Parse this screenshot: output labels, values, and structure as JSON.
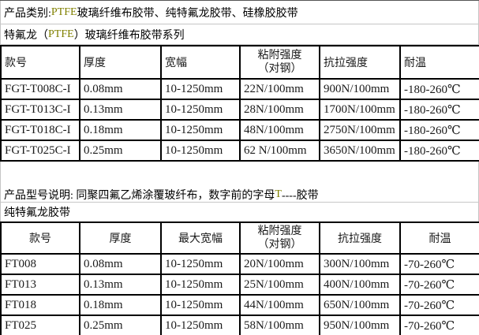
{
  "colors": {
    "accent_olive": "#808000",
    "table_border": "#000000",
    "gridline": "#c6c6c6"
  },
  "header": {
    "category_prefix": "产品类别: ",
    "category_highlight": "PTFE",
    "category_suffix": "玻璃纤维布胶带、纯特氟龙胶带、硅橡胶胶带",
    "series_prefix": "特氟龙（",
    "series_highlight": "PTFE",
    "series_suffix": "）玻璃纤维布胶带系列"
  },
  "note": {
    "prefix": "产品型号说明: 同聚四氟乙烯涂覆玻纤布，数字前的字母",
    "highlight": "T",
    "suffix": "----胶带"
  },
  "section2_title": "纯特氟龙胶带",
  "table1": {
    "columns": [
      "款号",
      "厚度",
      "宽幅",
      "粘附强度\n（对钢）",
      "抗拉强度",
      "耐温"
    ],
    "rows": [
      [
        "FGT-T008C-I",
        "0.08mm",
        "10-1250mm",
        "22N/100mm",
        "900N/100mm",
        "-180-260℃"
      ],
      [
        "FGT-T013C-I",
        "0.13mm",
        "10-1250mm",
        "28N/100mm",
        "1700N/100mm",
        "-180-260℃"
      ],
      [
        "FGT-T018C-I",
        "0.18mm",
        "10-1250mm",
        "48N/100mm",
        "2750N/100mm",
        "-180-260℃"
      ],
      [
        "FGT-T025C-I",
        "0.25mm",
        "10-1250mm",
        "62 N/100mm",
        "3650N/100mm",
        "-180-260℃"
      ]
    ]
  },
  "table2": {
    "columns": [
      "款号",
      "厚度",
      "最大宽幅",
      "粘附强度\n（对钢）",
      "抗拉强度",
      "耐温"
    ],
    "rows": [
      [
        "FT008",
        "0.08mm",
        "10-1250mm",
        "20N/100mm",
        "300N/100mm",
        "-70-260℃"
      ],
      [
        "FT013",
        "0.13mm",
        "10-1250mm",
        "25N/100mm",
        "400N/100mm",
        "-70-260℃"
      ],
      [
        "FT018",
        "0.18mm",
        "10-1250mm",
        "44N/100mm",
        "650N/100mm",
        "-70-260℃"
      ],
      [
        "FT025",
        "0.25mm",
        "10-1250mm",
        "58N/100mm",
        "950N/100mm",
        "-70-260℃"
      ]
    ]
  }
}
